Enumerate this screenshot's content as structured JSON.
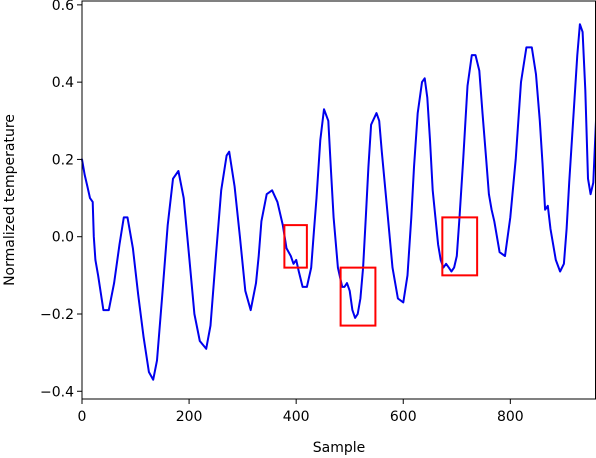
{
  "chart_data": {
    "type": "line",
    "title": "",
    "xlabel": "Sample",
    "ylabel": "Normalized temperature",
    "xlim": [
      0,
      960
    ],
    "ylim": [
      -0.42,
      0.61
    ],
    "xticks": [
      0,
      200,
      400,
      600,
      800
    ],
    "yticks": [
      -0.4,
      -0.2,
      0.0,
      0.2,
      0.4,
      0.6
    ],
    "ytick_labels": [
      "−0.4",
      "−0.2",
      "0.0",
      "0.2",
      "0.4",
      "0.6"
    ],
    "grid": false,
    "series": [
      {
        "color": "#0000ee",
        "x": [
          0,
          5,
          10,
          15,
          20,
          22,
          25,
          30,
          40,
          50,
          60,
          70,
          78,
          85,
          95,
          105,
          115,
          125,
          133,
          140,
          150,
          160,
          170,
          180,
          190,
          200,
          210,
          220,
          232,
          240,
          250,
          260,
          270,
          275,
          285,
          295,
          305,
          315,
          325,
          330,
          335,
          345,
          355,
          365,
          375,
          382,
          390,
          395,
          400,
          405,
          412,
          420,
          428,
          433,
          438,
          445,
          452,
          460,
          465,
          470,
          478,
          486,
          490,
          495,
          500,
          505,
          510,
          515,
          520,
          525,
          530,
          535,
          540,
          550,
          555,
          560,
          570,
          580,
          590,
          600,
          608,
          615,
          620,
          627,
          635,
          640,
          645,
          650,
          655,
          660,
          665,
          670,
          675,
          680,
          685,
          690,
          695,
          700,
          705,
          712,
          720,
          728,
          735,
          742,
          748,
          755,
          760,
          765,
          770,
          780,
          790,
          793,
          800,
          810,
          820,
          830,
          840,
          848,
          855,
          860,
          865,
          870,
          875,
          885,
          893,
          900,
          905,
          910,
          915,
          920,
          925,
          930,
          935,
          940,
          945,
          950,
          955,
          960
        ],
        "y": [
          0.2,
          0.16,
          0.13,
          0.1,
          0.09,
          0.0,
          -0.06,
          -0.1,
          -0.19,
          -0.19,
          -0.12,
          -0.02,
          0.05,
          0.05,
          -0.03,
          -0.15,
          -0.26,
          -0.35,
          -0.37,
          -0.32,
          -0.15,
          0.03,
          0.15,
          0.17,
          0.1,
          -0.05,
          -0.2,
          -0.27,
          -0.29,
          -0.23,
          -0.05,
          0.12,
          0.21,
          0.22,
          0.13,
          0.0,
          -0.14,
          -0.19,
          -0.12,
          -0.05,
          0.04,
          0.11,
          0.12,
          0.09,
          0.03,
          -0.03,
          -0.05,
          -0.07,
          -0.06,
          -0.09,
          -0.13,
          -0.13,
          -0.08,
          0.01,
          0.1,
          0.25,
          0.33,
          0.3,
          0.17,
          0.05,
          -0.08,
          -0.13,
          -0.13,
          -0.12,
          -0.14,
          -0.19,
          -0.21,
          -0.2,
          -0.16,
          -0.08,
          0.05,
          0.18,
          0.29,
          0.32,
          0.3,
          0.22,
          0.07,
          -0.08,
          -0.16,
          -0.17,
          -0.1,
          0.05,
          0.18,
          0.32,
          0.4,
          0.41,
          0.36,
          0.25,
          0.12,
          0.05,
          -0.02,
          -0.06,
          -0.08,
          -0.07,
          -0.08,
          -0.09,
          -0.08,
          -0.05,
          0.05,
          0.2,
          0.39,
          0.47,
          0.47,
          0.43,
          0.32,
          0.2,
          0.11,
          0.07,
          0.04,
          -0.04,
          -0.05,
          -0.02,
          0.05,
          0.2,
          0.4,
          0.49,
          0.49,
          0.42,
          0.3,
          0.19,
          0.07,
          0.08,
          0.02,
          -0.06,
          -0.09,
          -0.07,
          0.02,
          0.14,
          0.25,
          0.36,
          0.47,
          0.55,
          0.53,
          0.38,
          0.15,
          0.11,
          0.14,
          0.3
        ]
      }
    ],
    "highlight_boxes": [
      {
        "x": [
          378,
          420
        ],
        "y": [
          -0.08,
          0.03
        ],
        "color": "#ff0000"
      },
      {
        "x": [
          483,
          548
        ],
        "y": [
          -0.23,
          -0.08
        ],
        "color": "#ff0000"
      },
      {
        "x": [
          673,
          738
        ],
        "y": [
          -0.1,
          0.05
        ],
        "color": "#ff0000"
      }
    ]
  }
}
